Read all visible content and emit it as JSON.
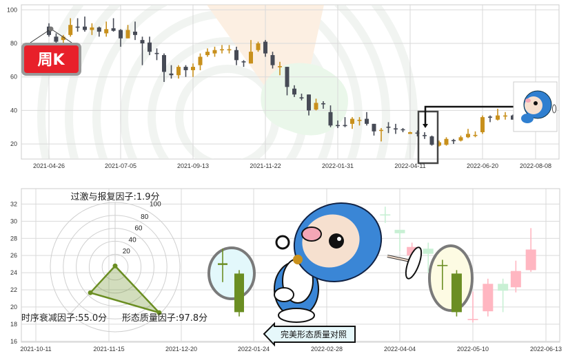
{
  "colors": {
    "up": "#c8901c",
    "down": "#474b56",
    "grid": "#d9d9d9",
    "radar": "#6b8e23",
    "pink": "#ffb6c1",
    "faint_green": "#c8f0d4",
    "ref_green": "#6b8e23",
    "badge_red": "#e8202a"
  },
  "chart_data": [
    {
      "type": "candlestick",
      "badge": "周K",
      "ylim": [
        11,
        103
      ],
      "y_ticks": [
        20,
        40,
        60,
        80,
        100
      ],
      "x_ticks": [
        "2021-04-26",
        "2021-07-05",
        "2021-09-13",
        "2021-11-22",
        "2022-01-31",
        "2022-04-11",
        "2022-06-20",
        "2022-08-08"
      ],
      "grid": true,
      "candles": [
        [
          "2021-04-26",
          90,
          92,
          84,
          85
        ],
        [
          "2021-05-03",
          84,
          86,
          80,
          81
        ],
        [
          "2021-05-10",
          82,
          85,
          80,
          84
        ],
        [
          "2021-05-17",
          85,
          95,
          84,
          91
        ],
        [
          "2021-05-24",
          90,
          95,
          87,
          89.7
        ],
        [
          "2021-05-31",
          90,
          96,
          87,
          88
        ],
        [
          "2021-06-07",
          88,
          92,
          85,
          89.5
        ],
        [
          "2021-06-14",
          89.5,
          90,
          84,
          87
        ],
        [
          "2021-06-21",
          86,
          93,
          84,
          88.5
        ],
        [
          "2021-06-28",
          89,
          95,
          87,
          87.5
        ],
        [
          "2021-07-05",
          88,
          88.5,
          78,
          83
        ],
        [
          "2021-07-12",
          83,
          91,
          83,
          88
        ],
        [
          "2021-07-19",
          87,
          93,
          82,
          85
        ],
        [
          "2021-07-26",
          82,
          84,
          67,
          80
        ],
        [
          "2021-08-02",
          80.5,
          84,
          73,
          75
        ],
        [
          "2021-08-09",
          74.3,
          77,
          70,
          74
        ],
        [
          "2021-08-16",
          73,
          74,
          57,
          63
        ],
        [
          "2021-08-23",
          62,
          67,
          59,
          61
        ],
        [
          "2021-08-30",
          61,
          67,
          59,
          66
        ],
        [
          "2021-09-06",
          66,
          67,
          60,
          64
        ],
        [
          "2021-09-13",
          64,
          68,
          60,
          66
        ],
        [
          "2021-09-20",
          67,
          74,
          64,
          72
        ],
        [
          "2021-09-27",
          73,
          77,
          72,
          75
        ],
        [
          "2021-10-04",
          74,
          78,
          72,
          76
        ],
        [
          "2021-10-11",
          76,
          79,
          74,
          76.5
        ],
        [
          "2021-10-18",
          76,
          79,
          74,
          76.5
        ],
        [
          "2021-10-25",
          76,
          78,
          67,
          70
        ],
        [
          "2021-11-01",
          69.3,
          70,
          66,
          69
        ],
        [
          "2021-11-08",
          68,
          82,
          68,
          75
        ],
        [
          "2021-11-15",
          76,
          81,
          75,
          80
        ],
        [
          "2021-11-22",
          81,
          82,
          72,
          74
        ],
        [
          "2021-11-29",
          73,
          75,
          65,
          67
        ],
        [
          "2021-12-06",
          66,
          69,
          61,
          66.4
        ],
        [
          "2021-12-13",
          66,
          66,
          49,
          54
        ],
        [
          "2021-12-20",
          53,
          55,
          48,
          49.5
        ],
        [
          "2021-12-27",
          47.8,
          50,
          46,
          47.5
        ],
        [
          "2022-01-03",
          49.5,
          49.5,
          37,
          40
        ],
        [
          "2022-01-10",
          40.5,
          47,
          40,
          44.5
        ],
        [
          "2022-01-17",
          44.3,
          45.5,
          41,
          44
        ],
        [
          "2022-01-24",
          39,
          43,
          30,
          31
        ],
        [
          "2022-01-31",
          31.3,
          34,
          29.5,
          31
        ],
        [
          "2022-02-07",
          31.3,
          36,
          30,
          31
        ],
        [
          "2022-02-14",
          32,
          36,
          29,
          35
        ],
        [
          "2022-02-21",
          34,
          36,
          31,
          34.4
        ],
        [
          "2022-02-28",
          35,
          39,
          31,
          32
        ],
        [
          "2022-03-07",
          32,
          32,
          25,
          27.5
        ],
        [
          "2022-03-14",
          28,
          29.5,
          21.5,
          28.4
        ],
        [
          "2022-03-21",
          30.3,
          33,
          26.5,
          30
        ],
        [
          "2022-03-28",
          29.3,
          32,
          26,
          29
        ],
        [
          "2022-04-04",
          28.8,
          29.5,
          27,
          28.5
        ],
        [
          "2022-04-11",
          26,
          27.3,
          26,
          27
        ],
        [
          "2022-04-18",
          26.8,
          28,
          24.5,
          26.5
        ],
        [
          "2022-04-25",
          25.3,
          27,
          23,
          25
        ],
        [
          "2022-05-02",
          24.5,
          25,
          19,
          19.5
        ],
        [
          "2022-05-09",
          19,
          22,
          18.5,
          21
        ],
        [
          "2022-05-16",
          19.5,
          24,
          19,
          23
        ],
        [
          "2022-05-23",
          22.3,
          23,
          20,
          22
        ],
        [
          "2022-05-30",
          22,
          25,
          21.5,
          24
        ],
        [
          "2022-06-06",
          24,
          29,
          23.5,
          26
        ],
        [
          "2022-06-13",
          25,
          27.5,
          24,
          25.4
        ],
        [
          "2022-06-20",
          27,
          37,
          26,
          36
        ],
        [
          "2022-06-27",
          36.3,
          37,
          33,
          36
        ],
        [
          "2022-07-04",
          34.5,
          41,
          34,
          37
        ],
        [
          "2022-07-11",
          36.5,
          39,
          34.5,
          37
        ],
        [
          "2022-07-18",
          37,
          37.5,
          34.5,
          34.5
        ]
      ]
    },
    {
      "type": "candlestick",
      "ylim": [
        15.9,
        33.8
      ],
      "y_ticks": [
        16,
        18,
        20,
        22,
        24,
        26,
        28,
        30,
        32
      ],
      "x_ticks": [
        "2021-10-11",
        "2021-11-15",
        "2021-12-20",
        "2022-01-24",
        "2022-02-28",
        "2022-04-04",
        "2022-05-10",
        "2022-06-13"
      ],
      "grid": true,
      "reference_label": "完美形态质量对照",
      "reference_candles": [
        [
          "2022-01-09",
          24.9,
          26.8,
          22.9,
          25.1
        ],
        [
          "2022-01-17",
          23.9,
          24.3,
          18.9,
          19.4
        ]
      ],
      "candles": [
        [
          "2022-03-28",
          30.8,
          31.7,
          29.8,
          30.7
        ],
        [
          "2022-04-04",
          29,
          29,
          26.5,
          28.6
        ],
        [
          "2022-04-10",
          26,
          27.5,
          25.5,
          27
        ],
        [
          "2022-04-18",
          26.8,
          27.5,
          24,
          26.2
        ],
        [
          "2022-04-25",
          24.9,
          25.5,
          22,
          24.8
        ],
        [
          "2022-05-02",
          23.9,
          24.3,
          18.9,
          19.4
        ],
        [
          "2022-05-10",
          18.5,
          21.8,
          18.2,
          18.6
        ],
        [
          "2022-05-17",
          19.5,
          23.3,
          18.9,
          22.7
        ],
        [
          "2022-05-24",
          22.7,
          23.3,
          19.4,
          21.9
        ],
        [
          "2022-05-30",
          22.3,
          25.4,
          21.7,
          24.2
        ],
        [
          "2022-06-06",
          24.3,
          29.2,
          24.1,
          26.7
        ]
      ]
    },
    {
      "type": "radar",
      "rings": [
        20,
        40,
        60,
        80,
        100
      ],
      "axes": [
        {
          "name": "过激与报复因子",
          "value": 1.9,
          "label": "过激与报复因子:1.9分"
        },
        {
          "name": "形态质量因子",
          "value": 97.8,
          "label": "形态质量因子:97.8分"
        },
        {
          "name": "时序衰减因子",
          "value": 55.0,
          "label": "时序衰减因子:55.0分"
        }
      ]
    }
  ]
}
